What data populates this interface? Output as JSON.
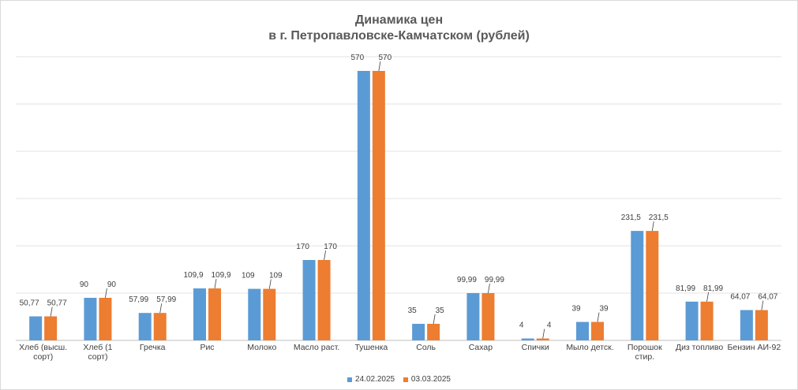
{
  "chart_data": {
    "type": "bar",
    "title_line1": "Динамика цен",
    "title_line2": "в г. Петропавловске-Камчатском (рублей)",
    "categories": [
      "Хлеб (высш. сорт)",
      "Хлеб (1 сорт)",
      "Гречка",
      "Рис",
      "Молоко",
      "Масло раст.",
      "Тушенка",
      "Соль",
      "Сахар",
      "Спички",
      "Мыло детск.",
      "Порошок стир.",
      "Диз топливо",
      "Бензин АИ-92"
    ],
    "series": [
      {
        "name": "24.02.2025",
        "color": "#5b9bd5",
        "values": [
          50.77,
          90,
          57.99,
          109.9,
          109,
          170,
          570,
          35,
          99.99,
          4,
          39,
          231.5,
          81.99,
          64.07
        ],
        "labels": [
          "50,77",
          "90",
          "57,99",
          "109,9",
          "109",
          "170",
          "570",
          "35",
          "99,99",
          "4",
          "39",
          "231,5",
          "81,99",
          "64,07"
        ]
      },
      {
        "name": "03.03.2025",
        "color": "#ed7d31",
        "values": [
          50.77,
          90,
          57.99,
          109.9,
          109,
          170,
          570,
          35,
          99.99,
          4,
          39,
          231.5,
          81.99,
          64.07
        ],
        "labels": [
          "50,77",
          "90",
          "57,99",
          "109,9",
          "109",
          "170",
          "570",
          "35",
          "99,99",
          "4",
          "39",
          "231,5",
          "81,99",
          "64,07"
        ]
      }
    ],
    "ylim": [
      0,
      600
    ],
    "grid": true,
    "legend_position": "bottom"
  }
}
